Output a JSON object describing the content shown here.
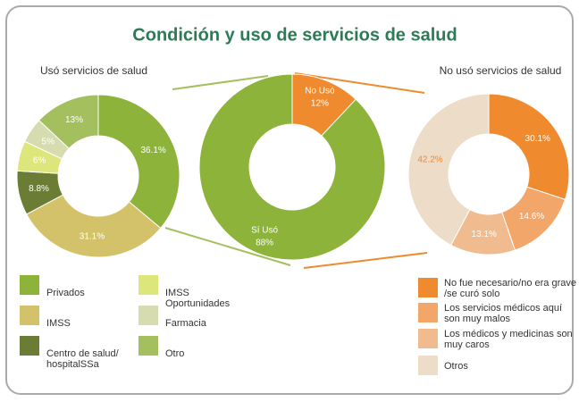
{
  "title": "Condición y uso de servicios de salud",
  "chart_data": [
    {
      "type": "pie",
      "title": "Usó servicios de salud",
      "categories": [
        "Privados",
        "IMSS",
        "Centro de salud/ hospitalSSa",
        "IMSS Oportunidades",
        "Farmacia",
        "Otro"
      ],
      "values": [
        36.1,
        31.1,
        8.8,
        6,
        5,
        13
      ],
      "value_labels": [
        "36.1%",
        "31.1%",
        "8.8%",
        "6%",
        "5%",
        "13%"
      ],
      "colors": [
        "#8db33a",
        "#d4c26a",
        "#6b7d35",
        "#dde67a",
        "#d6dcb0",
        "#a4bf5e"
      ]
    },
    {
      "type": "pie",
      "categories": [
        "No Usó",
        "Sí Usó"
      ],
      "values": [
        12,
        88
      ],
      "value_labels": [
        "12%",
        "88%"
      ],
      "colors": [
        "#f08a2e",
        "#8db33a"
      ]
    },
    {
      "type": "pie",
      "title": "No usó servicios de salud",
      "categories": [
        "No fue necesario/no era grave /se curó solo",
        "Los servicios médicos aquí son muy malos",
        "Los médicos y medicinas son muy caros",
        "Otros"
      ],
      "values": [
        30.1,
        14.6,
        13.1,
        42.2
      ],
      "value_labels": [
        "30.1%",
        "14.6%",
        "13.1%",
        "42.2%"
      ],
      "colors": [
        "#f08a2e",
        "#f3a66a",
        "#f0bb8e",
        "#ecdcc8"
      ]
    }
  ]
}
